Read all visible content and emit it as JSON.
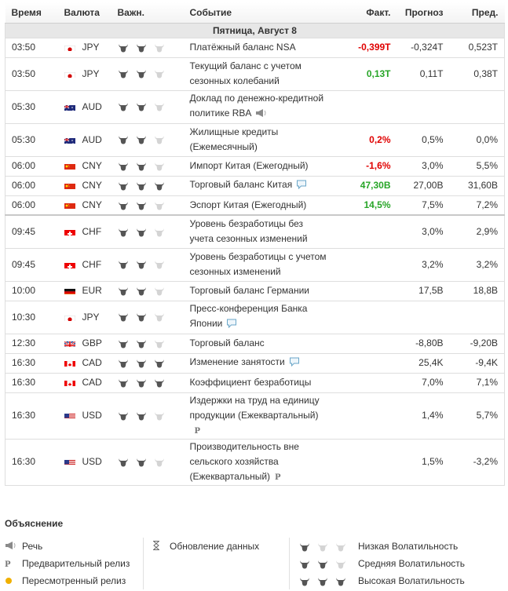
{
  "header": {
    "time": "Время",
    "currency": "Валюта",
    "importance": "Важн.",
    "event": "Событие",
    "actual": "Факт.",
    "forecast": "Прогноз",
    "previous": "Пред."
  },
  "day_label": "Пятница, Август 8",
  "events": [
    {
      "time": "03:50",
      "flag": "jp",
      "currency": "JPY",
      "importance": 2,
      "event": "Платёжный баланс NSA",
      "actual": "-0,399T",
      "actual_class": "neg",
      "forecast": "-0,324T",
      "previous": "0,523T"
    },
    {
      "time": "03:50",
      "flag": "jp",
      "currency": "JPY",
      "importance": 2,
      "event": "Текущий баланс с учетом сезонных колебаний",
      "actual": "0,13T",
      "actual_class": "pos",
      "forecast": "0,11T",
      "previous": "0,38T"
    },
    {
      "time": "05:30",
      "flag": "au",
      "currency": "AUD",
      "importance": 2,
      "event": "Доклад по денежно-кредитной политике RBA",
      "icon": "speech",
      "actual": "",
      "forecast": "",
      "previous": ""
    },
    {
      "time": "05:30",
      "flag": "au",
      "currency": "AUD",
      "importance": 2,
      "event": "Жилищные кредиты (Ежемесячный)",
      "actual": "0,2%",
      "actual_class": "neg",
      "forecast": "0,5%",
      "previous": "0,0%"
    },
    {
      "time": "06:00",
      "flag": "cn",
      "currency": "CNY",
      "importance": 2,
      "event": "Импорт Китая (Ежегодный)",
      "actual": "-1,6%",
      "actual_class": "neg",
      "forecast": "3,0%",
      "previous": "5,5%"
    },
    {
      "time": "06:00",
      "flag": "cn",
      "currency": "CNY",
      "importance": 3,
      "event": "Торговый баланс Китая",
      "icon": "comment",
      "actual": "47,30B",
      "actual_class": "pos",
      "forecast": "27,00B",
      "previous": "31,60B"
    },
    {
      "time": "06:00",
      "flag": "cn",
      "currency": "CNY",
      "importance": 2,
      "event": "Эспорт Китая (Ежегодный)",
      "actual": "14,5%",
      "actual_class": "pos",
      "forecast": "7,5%",
      "previous": "7,2%",
      "separator": true
    },
    {
      "time": "09:45",
      "flag": "ch",
      "currency": "CHF",
      "importance": 2,
      "event": "Уровень безработицы без учета сезонных изменений",
      "actual": "",
      "forecast": "3,0%",
      "previous": "2,9%"
    },
    {
      "time": "09:45",
      "flag": "ch",
      "currency": "CHF",
      "importance": 2,
      "event": "Уровень безработицы с учетом сезонных изменений",
      "actual": "",
      "forecast": "3,2%",
      "previous": "3,2%"
    },
    {
      "time": "10:00",
      "flag": "de",
      "currency": "EUR",
      "importance": 2,
      "event": "Торговый баланс Германии",
      "actual": "",
      "forecast": "17,5B",
      "previous": "18,8B"
    },
    {
      "time": "10:30",
      "flag": "jp",
      "currency": "JPY",
      "importance": 2,
      "event": "Пресс-конференция Банка Японии",
      "icon": "comment",
      "actual": "",
      "forecast": "",
      "previous": ""
    },
    {
      "time": "12:30",
      "flag": "gb",
      "currency": "GBP",
      "importance": 2,
      "event": "Торговый баланс",
      "actual": "",
      "forecast": "-8,80B",
      "previous": "-9,20B"
    },
    {
      "time": "16:30",
      "flag": "ca",
      "currency": "CAD",
      "importance": 3,
      "event": "Изменение занятости",
      "icon": "comment",
      "actual": "",
      "forecast": "25,4K",
      "previous": "-9,4K"
    },
    {
      "time": "16:30",
      "flag": "ca",
      "currency": "CAD",
      "importance": 3,
      "event": "Коэффициент безработицы",
      "actual": "",
      "forecast": "7,0%",
      "previous": "7,1%"
    },
    {
      "time": "16:30",
      "flag": "us",
      "currency": "USD",
      "importance": 2,
      "event": "Издержки на труд на единицу продукции (Ежеквартальный)",
      "icon": "prelim",
      "actual": "",
      "forecast": "1,4%",
      "previous": "5,7%"
    },
    {
      "time": "16:30",
      "flag": "us",
      "currency": "USD",
      "importance": 2,
      "event": "Производительность вне сельского хозяйства (Ежеквартальный)",
      "icon": "prelim",
      "actual": "",
      "forecast": "1,5%",
      "previous": "-3,2%"
    }
  ],
  "prelim_symbol": "P",
  "legend": {
    "title": "Объяснение",
    "speech": "Речь",
    "preliminary": "Предварительный релиз",
    "revised": "Пересмотренный релиз",
    "update": "Обновление данных",
    "low": "Низкая Волатильность",
    "medium": "Средняя Волатильность",
    "high": "Высокая Волатильность"
  },
  "colors": {
    "negative": "#e00000",
    "positive": "#27a527",
    "bull_active": "#555555",
    "bull_inactive": "#d4d4d4"
  }
}
